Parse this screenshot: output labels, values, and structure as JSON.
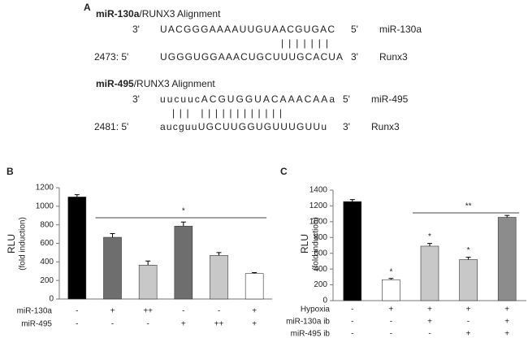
{
  "alignment": {
    "panel": "A",
    "blocks": [
      {
        "title_bold": "miR-130a",
        "title_rest": "/RUNX3 Alignment",
        "top": {
          "end3": "3'",
          "sequence": "UACGGGAAAAUUGUAACGUGAC",
          "end5": "5'",
          "name": "miR-130a"
        },
        "pairs": "|||||||",
        "bottom": {
          "start": "2473: 5'",
          "sequence": "UGGGUGGAAACUGCUUUGCACUA",
          "end3": "3'",
          "name": "Runx3"
        }
      },
      {
        "title_bold": "miR-495",
        "title_rest": "/RUNX3 Alignment",
        "top": {
          "end3": "3'",
          "sequence": "uucuucACGUGGUACAAACAAa",
          "end5": "5'",
          "name": "miR-495"
        },
        "pairs": "|||  ||||||||||||",
        "bottom": {
          "start": "2481: 5'",
          "sequence": "aucguuUGCUUGGUGUUUGUUu",
          "end3": "3'",
          "name": "Runx3"
        }
      }
    ]
  },
  "chart_data": [
    {
      "type": "bar",
      "panel": "B",
      "ylabel": [
        "RLU",
        "(fold induction)"
      ],
      "values": [
        1100,
        665,
        365,
        785,
        470,
        275
      ],
      "errors": [
        25,
        40,
        45,
        45,
        30,
        10
      ],
      "colors": [
        "#000000",
        "#6e6e6e",
        "#c8c8c8",
        "#6e6e6e",
        "#c8c8c8",
        "#ffffff"
      ],
      "ylim": [
        0,
        1200
      ],
      "yticks": [
        0,
        200,
        400,
        600,
        800,
        1000,
        1200
      ],
      "bracket_label": "*",
      "significance_labels": [
        null,
        null,
        null,
        null,
        null,
        null
      ],
      "conditions": [
        {
          "name": "miR-130a",
          "values": [
            "-",
            "+",
            "++",
            "-",
            "-",
            "+"
          ]
        },
        {
          "name": "miR-495",
          "values": [
            "-",
            "-",
            "-",
            "+",
            "++",
            "+"
          ]
        }
      ]
    },
    {
      "type": "bar",
      "panel": "C",
      "ylabel": [
        "RLU",
        "(fold induction)"
      ],
      "values": [
        1255,
        265,
        690,
        520,
        1055
      ],
      "errors": [
        25,
        15,
        35,
        30,
        25
      ],
      "colors": [
        "#000000",
        "#ffffff",
        "#c8c8c8",
        "#c8c8c8",
        "#8c8c8c"
      ],
      "ylim": [
        0,
        1400
      ],
      "yticks": [
        0,
        200,
        400,
        600,
        800,
        1000,
        1200,
        1400
      ],
      "bracket_label": "**",
      "significance_labels": [
        null,
        "*",
        "*",
        "*",
        null
      ],
      "conditions": [
        {
          "name": "Hypoxia",
          "values": [
            "-",
            "+",
            "+",
            "+",
            "+"
          ]
        },
        {
          "name": "miR-130a ib",
          "values": [
            "-",
            "-",
            "+",
            "-",
            "+"
          ]
        },
        {
          "name": "miR-495 ib",
          "values": [
            "-",
            "-",
            "-",
            "+",
            "+"
          ]
        }
      ]
    }
  ]
}
